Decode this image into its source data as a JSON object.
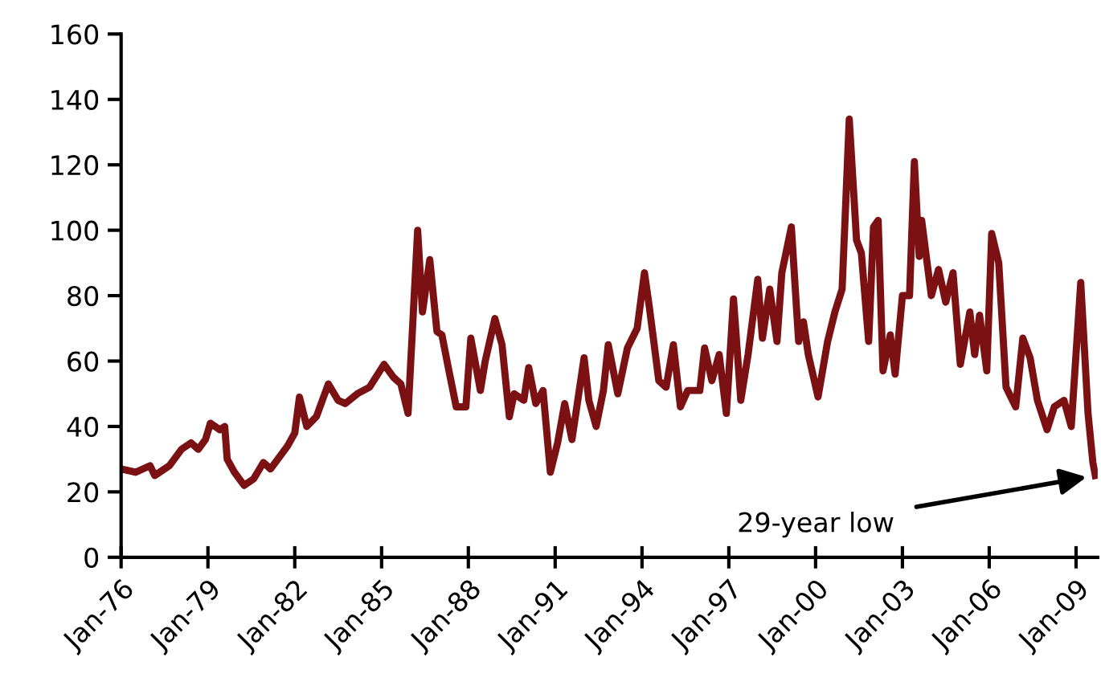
{
  "chart_data": {
    "type": "line",
    "x": [
      "1976-01",
      "1976-07",
      "1977-01",
      "1977-03",
      "1977-09",
      "1978-02",
      "1978-06",
      "1978-09",
      "1978-12",
      "1979-02",
      "1979-06",
      "1979-08",
      "1979-09",
      "1979-12",
      "1980-04",
      "1980-08",
      "1980-12",
      "1981-03",
      "1981-07",
      "1981-10",
      "1982-01",
      "1982-03",
      "1982-06",
      "1982-10",
      "1983-03",
      "1983-07",
      "1983-10",
      "1984-03",
      "1984-08",
      "1985-02",
      "1985-06",
      "1985-09",
      "1985-12",
      "1986-04",
      "1986-06",
      "1986-09",
      "1986-12",
      "1987-02",
      "1987-05",
      "1987-08",
      "1987-12",
      "1988-02",
      "1988-06",
      "1988-08",
      "1988-12",
      "1989-03",
      "1989-06",
      "1989-08",
      "1989-12",
      "1990-02",
      "1990-05",
      "1990-08",
      "1990-11",
      "1991-02",
      "1991-05",
      "1991-08",
      "1992-01",
      "1992-03",
      "1992-06",
      "1992-09",
      "1992-11",
      "1993-03",
      "1993-07",
      "1993-11",
      "1994-02",
      "1994-04",
      "1994-08",
      "1994-11",
      "1995-02",
      "1995-05",
      "1995-08",
      "1996-01",
      "1996-03",
      "1996-06",
      "1996-09",
      "1996-12",
      "1997-03",
      "1997-06",
      "1997-09",
      "1998-01",
      "1998-03",
      "1998-06",
      "1998-09",
      "1998-11",
      "1999-03",
      "1999-06",
      "1999-08",
      "1999-10",
      "2000-02",
      "2000-06",
      "2000-09",
      "2000-12",
      "2001-03",
      "2001-06",
      "2001-08",
      "2001-11",
      "2002-01",
      "2002-03",
      "2002-05",
      "2002-08",
      "2002-10",
      "2003-01",
      "2003-04",
      "2003-06",
      "2003-08",
      "2003-09",
      "2004-01",
      "2004-04",
      "2004-07",
      "2004-10",
      "2005-01",
      "2005-05",
      "2005-07",
      "2005-09",
      "2005-12",
      "2006-02",
      "2006-05",
      "2006-08",
      "2006-12",
      "2007-03",
      "2007-06",
      "2007-09",
      "2008-01",
      "2008-04",
      "2008-08",
      "2008-11",
      "2009-03",
      "2009-06",
      "2009-08",
      "2009-09"
    ],
    "series": [
      {
        "color": "#7b1113",
        "values": [
          27,
          26,
          28,
          25,
          28,
          33,
          35,
          33,
          36,
          41,
          39,
          40,
          30,
          26,
          22,
          24,
          29,
          27,
          31,
          34,
          38,
          49,
          40,
          43,
          53,
          48,
          47,
          50,
          52,
          59,
          55,
          53,
          44,
          100,
          75,
          91,
          69,
          68,
          57,
          46,
          46,
          67,
          51,
          60,
          73,
          65,
          43,
          50,
          48,
          58,
          47,
          51,
          26,
          35,
          47,
          36,
          61,
          48,
          40,
          51,
          65,
          50,
          64,
          70,
          87,
          77,
          54,
          52,
          65,
          46,
          51,
          51,
          64,
          54,
          62,
          44,
          79,
          48,
          62,
          85,
          67,
          82,
          66,
          87,
          101,
          66,
          72,
          62,
          49,
          66,
          75,
          82,
          134,
          97,
          93,
          66,
          101,
          103,
          57,
          68,
          56,
          80,
          80,
          121,
          92,
          103,
          80,
          88,
          78,
          87,
          59,
          75,
          62,
          74,
          57,
          99,
          90,
          52,
          46,
          67,
          61,
          48,
          39,
          46,
          48,
          40,
          84,
          44,
          29,
          25
        ]
      }
    ],
    "xlim": [
      "1976-01",
      "2009-10"
    ],
    "xticks": [
      {
        "value": "1976-01",
        "label": "Jan-76"
      },
      {
        "value": "1979-01",
        "label": "Jan-79"
      },
      {
        "value": "1982-01",
        "label": "Jan-82"
      },
      {
        "value": "1985-01",
        "label": "Jan-85"
      },
      {
        "value": "1988-01",
        "label": "Jan-88"
      },
      {
        "value": "1991-01",
        "label": "Jan-91"
      },
      {
        "value": "1994-01",
        "label": "Jan-94"
      },
      {
        "value": "1997-01",
        "label": "Jan-97"
      },
      {
        "value": "2000-01",
        "label": "Jan-00"
      },
      {
        "value": "2003-01",
        "label": "Jan-03"
      },
      {
        "value": "2006-01",
        "label": "Jan-06"
      },
      {
        "value": "2009-01",
        "label": "Jan-09"
      }
    ],
    "ylim": [
      0,
      160
    ],
    "yticks": [
      0,
      20,
      40,
      60,
      80,
      100,
      120,
      140,
      160
    ],
    "grid": false,
    "legend": false,
    "marker": "none",
    "line_style": "solid",
    "annotations": [
      {
        "text": "29-year low",
        "x": "2009-09",
        "y": 25
      }
    ]
  }
}
